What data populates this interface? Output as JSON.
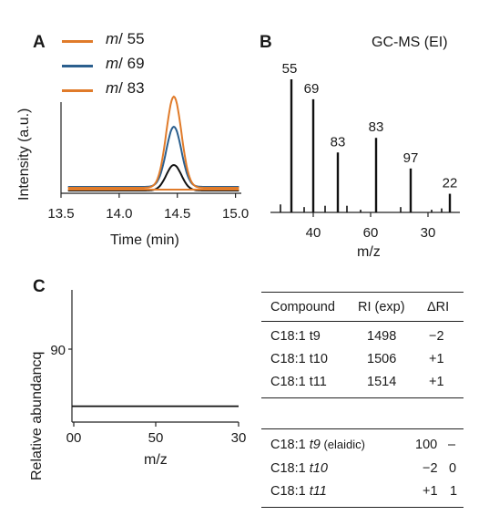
{
  "panels": {
    "a": "A",
    "b": "B",
    "c": "C"
  },
  "colors": {
    "m55": "#e07b2a",
    "m69": "#2b5f8e",
    "m83": "#e07b2a",
    "tic": "#111111"
  },
  "chart_data": [
    {
      "id": "A",
      "type": "line",
      "xlabel": "Time (min)",
      "ylabel": "Intensity (a.u.)",
      "xlim": [
        13.5,
        15.05
      ],
      "xticks": [
        "13.5",
        "14.0",
        "14.5",
        "15.0"
      ],
      "grid": false,
      "legend": "top-left",
      "peak_center": 14.47,
      "peak_width": 0.065,
      "series": [
        {
          "name": "m/ 55",
          "legend_prefix": "m",
          "legend_suffix": "/ 55",
          "color": "#e07b2a",
          "baseline": 0.06,
          "height": 1.0
        },
        {
          "name": "m/ 69",
          "legend_prefix": "m",
          "legend_suffix": "/ 69",
          "color": "#2b5f8e",
          "baseline": 0.07,
          "height": 0.66
        },
        {
          "name": "m/ 83",
          "legend_prefix": "m",
          "legend_suffix": "/ 83",
          "color": "#e07b2a",
          "baseline": 0.04,
          "height": 0.0
        },
        {
          "name": "",
          "color": "#111111",
          "baseline": 0.03,
          "height": 0.28
        }
      ]
    },
    {
      "id": "B",
      "type": "bar",
      "title": "GC-MS (EI)",
      "xlabel": "m/z",
      "xticks": [
        "40",
        "60",
        "30"
      ],
      "labeled_peaks": [
        {
          "label": "55",
          "value": 1.0
        },
        {
          "label": "69",
          "value": 0.85
        },
        {
          "label": "83",
          "value": 0.45
        },
        {
          "label": "83",
          "value": 0.56
        },
        {
          "label": "97",
          "value": 0.33
        },
        {
          "label": "22",
          "value": 0.14
        }
      ],
      "minor_peaks": [
        0.06,
        0.04,
        0.05,
        0.05,
        0.02,
        0.04,
        0.02,
        0.03
      ]
    },
    {
      "id": "C",
      "type": "line",
      "xlabel": "m/z",
      "ylabel": "Relative abundancq",
      "xticks": [
        "00",
        "50",
        "30"
      ],
      "yticks": [
        "90"
      ],
      "series": [
        {
          "name": "",
          "values": [
            0.12,
            0.12
          ]
        }
      ]
    }
  ],
  "table1": {
    "headers": [
      "Compound",
      "RI (exp)",
      "ΔRI"
    ],
    "rows": [
      [
        "C18:1 t9",
        "1498",
        "−2"
      ],
      [
        "C18:1 t10",
        "1506",
        "+1"
      ],
      [
        "C18:1 t11",
        "1514",
        "+1"
      ]
    ]
  },
  "table2": {
    "rows": [
      {
        "name": "C18:1 ",
        "isomer": "t9",
        "note": " (elaidic)",
        "v1": "100",
        "v2": "–"
      },
      {
        "name": "C18:1 ",
        "isomer": "t10",
        "note": "",
        "v1": "−2",
        "v2": "0"
      },
      {
        "name": "C18:1 ",
        "isomer": "t11",
        "note": "",
        "v1": "+1",
        "v2": "1"
      }
    ]
  }
}
